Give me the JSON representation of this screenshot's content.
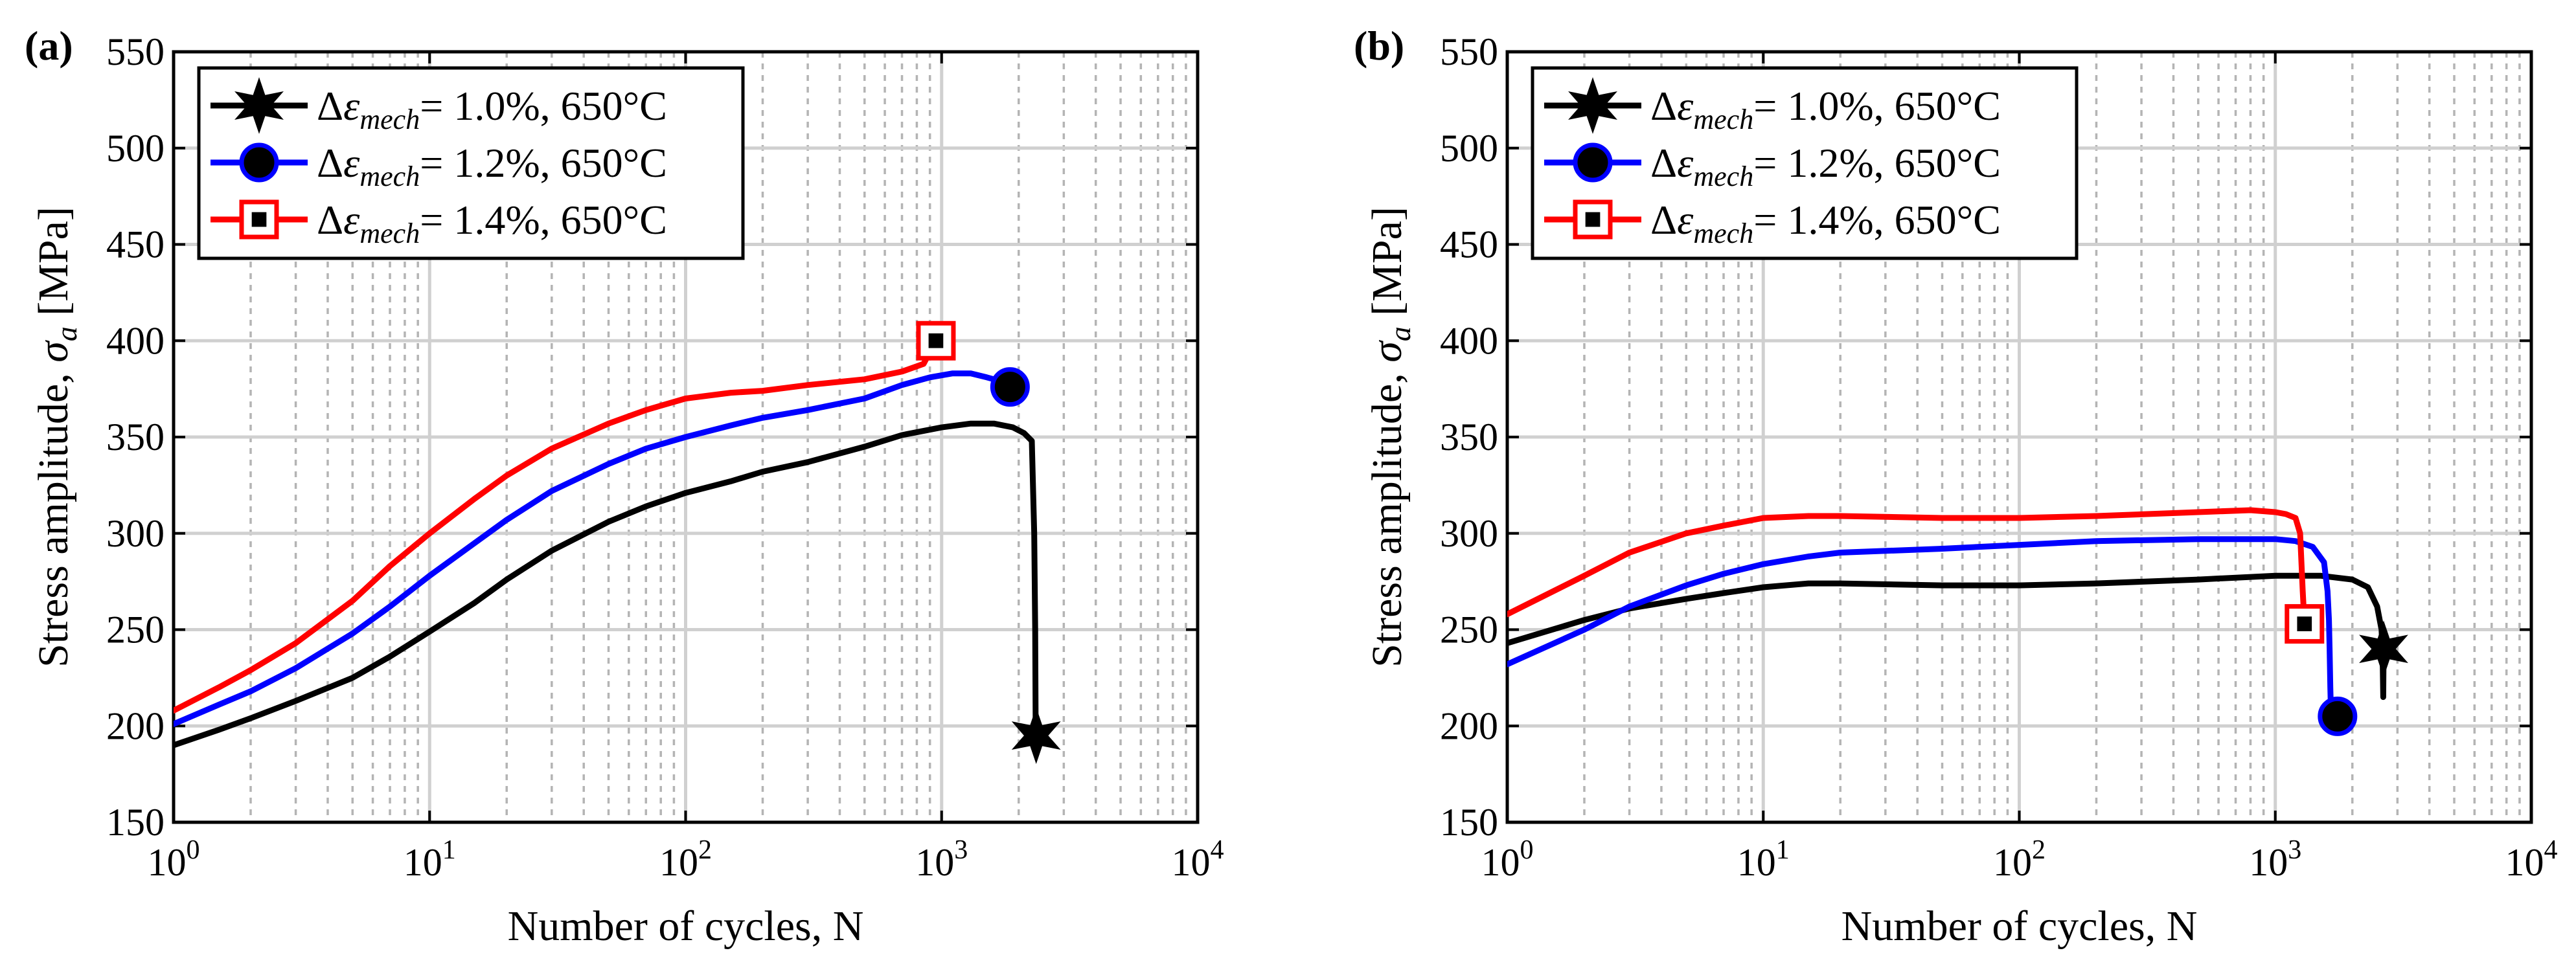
{
  "chart_data": [
    {
      "panel": "(a)",
      "type": "line",
      "xscale": "log",
      "xlabel": "Number of cycles, N",
      "ylabel_text": "Stress amplitude, ",
      "ylabel_symbol": "σ",
      "ylabel_sub": "a",
      "ylabel_unit": " [MPa]",
      "xlim": [
        1,
        10000
      ],
      "ylim": [
        150,
        550
      ],
      "xticks": [
        {
          "v": 1,
          "m": "0"
        },
        {
          "v": 10,
          "m": "1"
        },
        {
          "v": 100,
          "m": "2"
        },
        {
          "v": 1000,
          "m": "3"
        },
        {
          "v": 10000,
          "m": "4"
        }
      ],
      "tick_base": "10",
      "yticks": [
        "150",
        "200",
        "250",
        "300",
        "350",
        "400",
        "450",
        "500",
        "550"
      ],
      "grid": true,
      "legend": "top-left",
      "series": [
        {
          "name": "Δε mech = 1.0%, 650°C",
          "legend_prefix": "Δ",
          "legend_symbol": "ε",
          "legend_sub": "mech",
          "legend_value": "= 1.0%",
          "legend_temp": ", 650°C",
          "color": "#000000",
          "marker": "hexstar",
          "x": [
            1,
            1.5,
            2,
            3,
            5,
            7,
            10,
            15,
            20,
            30,
            50,
            70,
            100,
            150,
            200,
            300,
            500,
            700,
            1000,
            1300,
            1600,
            1900,
            2100,
            2250,
            2300,
            2320,
            2330,
            2340
          ],
          "y": [
            190,
            198,
            204,
            213,
            225,
            236,
            249,
            264,
            276,
            291,
            306,
            314,
            321,
            327,
            332,
            337,
            345,
            351,
            355,
            357,
            357,
            355,
            352,
            348,
            300,
            250,
            200,
            195
          ],
          "end": {
            "x": 2340,
            "y": 195
          }
        },
        {
          "name": "Δε mech = 1.2%, 650°C",
          "legend_prefix": "Δ",
          "legend_symbol": "ε",
          "legend_sub": "mech",
          "legend_value": "= 1.2%",
          "legend_temp": ", 650°C",
          "color": "#0000ff",
          "marker": "circle",
          "x": [
            1,
            1.5,
            2,
            3,
            5,
            7,
            10,
            15,
            20,
            30,
            50,
            70,
            100,
            150,
            200,
            300,
            500,
            700,
            900,
            1100,
            1300,
            1500,
            1700,
            1850
          ],
          "y": [
            201,
            211,
            218,
            230,
            248,
            262,
            278,
            295,
            307,
            322,
            336,
            344,
            350,
            356,
            360,
            364,
            370,
            377,
            381,
            383,
            383,
            381,
            379,
            376
          ],
          "end": {
            "x": 1850,
            "y": 376
          }
        },
        {
          "name": "Δε mech = 1.4%, 650°C",
          "legend_prefix": "Δ",
          "legend_symbol": "ε",
          "legend_sub": "mech",
          "legend_value": "= 1.4%",
          "legend_temp": ", 650°C",
          "color": "#ff0000",
          "marker": "square",
          "x": [
            1,
            1.5,
            2,
            3,
            5,
            7,
            10,
            15,
            20,
            30,
            50,
            70,
            100,
            150,
            200,
            300,
            500,
            700,
            850,
            950
          ],
          "y": [
            208,
            220,
            229,
            243,
            265,
            283,
            300,
            318,
            330,
            344,
            357,
            364,
            370,
            373,
            374,
            377,
            380,
            384,
            388,
            400
          ],
          "end": {
            "x": 950,
            "y": 400
          }
        }
      ]
    },
    {
      "panel": "(b)",
      "type": "line",
      "xscale": "log",
      "xlabel": "Number of cycles, N",
      "ylabel_text": "Stress amplitude, ",
      "ylabel_symbol": "σ",
      "ylabel_sub": "a",
      "ylabel_unit": " [MPa]",
      "xlim": [
        1,
        10000
      ],
      "ylim": [
        150,
        550
      ],
      "xticks": [
        {
          "v": 1,
          "m": "0"
        },
        {
          "v": 10,
          "m": "1"
        },
        {
          "v": 100,
          "m": "2"
        },
        {
          "v": 1000,
          "m": "3"
        },
        {
          "v": 10000,
          "m": "4"
        }
      ],
      "tick_base": "10",
      "yticks": [
        "150",
        "200",
        "250",
        "300",
        "350",
        "400",
        "450",
        "500",
        "550"
      ],
      "grid": true,
      "legend": "top-left",
      "series": [
        {
          "name": "Δε mech = 1.0%, 650°C",
          "legend_prefix": "Δ",
          "legend_symbol": "ε",
          "legend_sub": "mech",
          "legend_value": "= 1.0%",
          "legend_temp": ", 650°C",
          "color": "#000000",
          "marker": "hexstar",
          "x": [
            1,
            2,
            3,
            5,
            7,
            10,
            15,
            20,
            50,
            100,
            200,
            500,
            1000,
            1500,
            2000,
            2300,
            2500,
            2600,
            2620,
            2630,
            2640,
            2650
          ],
          "y": [
            243,
            255,
            261,
            266,
            269,
            272,
            274,
            274,
            273,
            273,
            274,
            276,
            278,
            278,
            276,
            272,
            262,
            250,
            240,
            230,
            215,
            240
          ],
          "end": {
            "x": 2650,
            "y": 240
          }
        },
        {
          "name": "Δε mech = 1.2%, 650°C",
          "legend_prefix": "Δ",
          "legend_symbol": "ε",
          "legend_sub": "mech",
          "legend_value": "= 1.2%",
          "legend_temp": ", 650°C",
          "color": "#0000ff",
          "marker": "circle",
          "x": [
            1,
            2,
            3,
            5,
            7,
            10,
            15,
            20,
            50,
            100,
            200,
            500,
            1000,
            1200,
            1400,
            1550,
            1600,
            1620,
            1630,
            1640,
            1650,
            1700,
            1750
          ],
          "y": [
            232,
            250,
            262,
            273,
            279,
            284,
            288,
            290,
            292,
            294,
            296,
            297,
            297,
            296,
            293,
            285,
            270,
            255,
            240,
            220,
            207,
            205,
            205
          ],
          "end": {
            "x": 1750,
            "y": 205
          }
        },
        {
          "name": "Δε mech = 1.4%, 650°C",
          "legend_prefix": "Δ",
          "legend_symbol": "ε",
          "legend_sub": "mech",
          "legend_value": "= 1.4%",
          "legend_temp": ", 650°C",
          "color": "#ff0000",
          "marker": "square",
          "x": [
            1,
            2,
            3,
            5,
            7,
            10,
            15,
            20,
            50,
            100,
            200,
            500,
            800,
            1000,
            1100,
            1200,
            1250,
            1280,
            1300
          ],
          "y": [
            258,
            278,
            290,
            300,
            304,
            308,
            309,
            309,
            308,
            308,
            309,
            311,
            312,
            311,
            310,
            308,
            300,
            270,
            253
          ],
          "end": {
            "x": 1300,
            "y": 253
          }
        }
      ]
    }
  ]
}
